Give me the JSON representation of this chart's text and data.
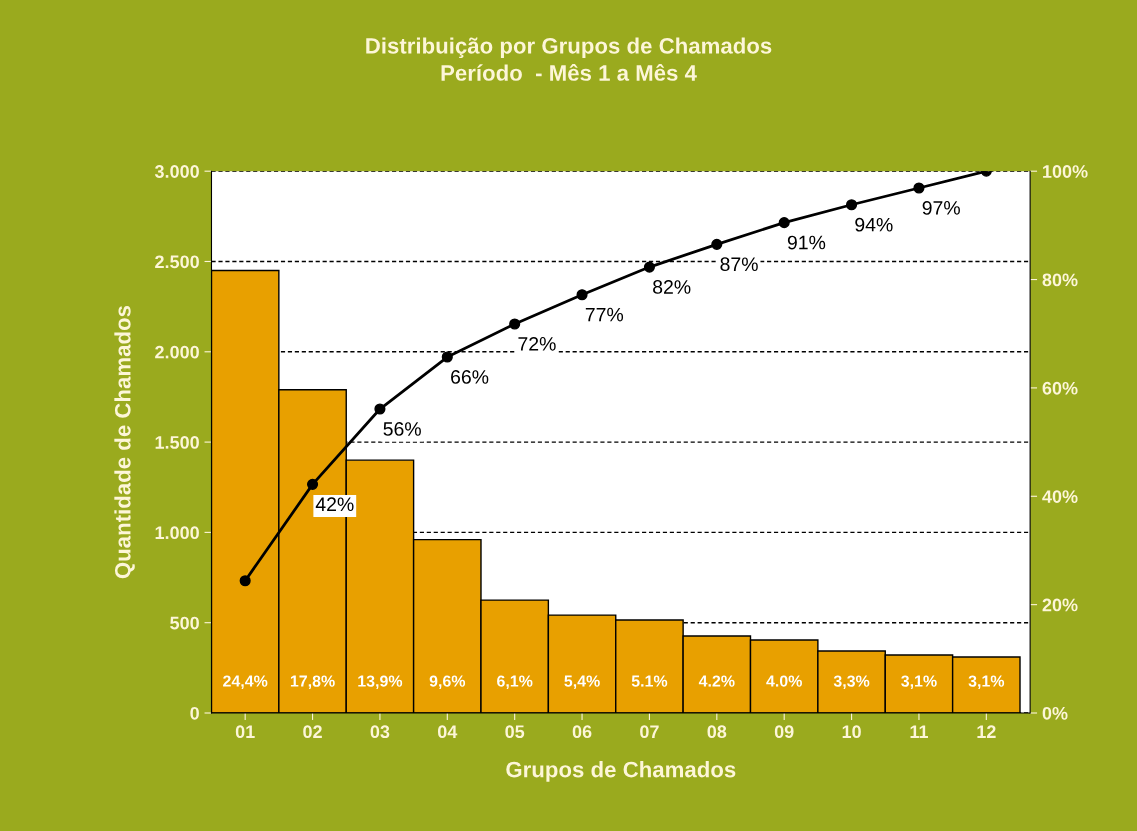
{
  "chart_data": {
    "type": "bar",
    "title": "Distribuição por Grupos de Chamados\nPeríodo  - Mês 1 a Mês 4",
    "xlabel": "Grupos de Chamados",
    "ylabel": "Quantidade de Chamados",
    "categories": [
      "01",
      "02",
      "03",
      "04",
      "05",
      "06",
      "07",
      "08",
      "09",
      "10",
      "11",
      "12"
    ],
    "series": [
      {
        "color": "#e8a000",
        "values": [
          2450,
          1790,
          1400,
          960,
          625,
          542,
          515,
          426,
          404,
          343,
          321,
          310
        ]
      },
      {
        "type": "line",
        "axis": "y2",
        "color": "#000000",
        "marker": "circle",
        "line_style": "solid",
        "values": [
          24.4,
          42.2,
          56.1,
          65.7,
          71.8,
          77.2,
          82.3,
          86.5,
          90.5,
          93.8,
          96.9,
          100
        ],
        "value_labels": [
          null,
          "42%",
          "56%",
          "66%",
          "72%",
          "77%",
          "82%",
          "87%",
          "91%",
          "94%",
          "97%",
          null
        ]
      }
    ],
    "ylim": [
      0,
      3000
    ],
    "yticks": [
      {
        "value": 0,
        "label": "0"
      },
      {
        "value": 500,
        "label": "500"
      },
      {
        "value": 1000,
        "label": "1.000"
      },
      {
        "value": 1500,
        "label": "1.500"
      },
      {
        "value": 2000,
        "label": "2.000"
      },
      {
        "value": 2500,
        "label": "2.500"
      },
      {
        "value": 3000,
        "label": "3.000"
      }
    ],
    "y2lim": [
      0,
      100
    ],
    "y2ticks": [
      {
        "value": 0,
        "label": "0%"
      },
      {
        "value": 20,
        "label": "20%"
      },
      {
        "value": 40,
        "label": "40%"
      },
      {
        "value": 60,
        "label": "60%"
      },
      {
        "value": 80,
        "label": "80%"
      },
      {
        "value": 100,
        "label": "100%"
      }
    ],
    "annotations": [
      {
        "text": "24,4%",
        "x": "01",
        "y": 0
      },
      {
        "text": "17,8%",
        "x": "02",
        "y": 0
      },
      {
        "text": "13,9%",
        "x": "03",
        "y": 0
      },
      {
        "text": "9,6%",
        "x": "04",
        "y": 0
      },
      {
        "text": "6,1%",
        "x": "05",
        "y": 0
      },
      {
        "text": "5,4%",
        "x": "06",
        "y": 0
      },
      {
        "text": "5.1%",
        "x": "07",
        "y": 0
      },
      {
        "text": "4.2%",
        "x": "08",
        "y": 0
      },
      {
        "text": "4.0%",
        "x": "09",
        "y": 0
      },
      {
        "text": "3,3%",
        "x": "10",
        "y": 0
      },
      {
        "text": "3,1%",
        "x": "11",
        "y": 0
      },
      {
        "text": "3,1%",
        "x": "12",
        "y": 0
      }
    ],
    "grid": "y",
    "legend": false
  }
}
